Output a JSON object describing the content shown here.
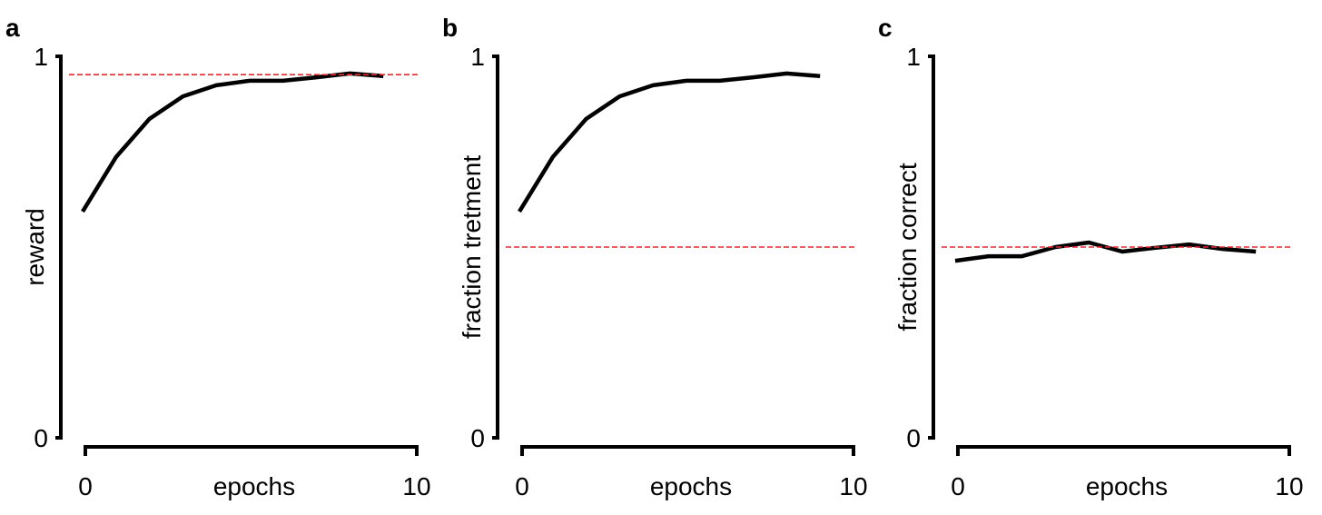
{
  "chart_data": [
    {
      "type": "line",
      "panel_label": "a",
      "xlabel": "epochs",
      "ylabel": "reward",
      "xlim": [
        0,
        10
      ],
      "ylim": [
        0,
        1
      ],
      "xtick_labels": [
        "0",
        "10"
      ],
      "ytick_labels": [
        "0",
        "1"
      ],
      "grid": false,
      "x": [
        0,
        1,
        2,
        3,
        4,
        5,
        6,
        7,
        8,
        9
      ],
      "series": [
        {
          "name": "reward",
          "color": "#000000",
          "values": [
            0.593,
            0.736,
            0.836,
            0.895,
            0.924,
            0.936,
            0.936,
            0.945,
            0.955,
            0.948
          ]
        }
      ],
      "reference_line": {
        "y": 0.952,
        "color": "#e8292b",
        "style": "dashed"
      }
    },
    {
      "type": "line",
      "panel_label": "b",
      "xlabel": "epochs",
      "ylabel": "fraction tretment",
      "xlim": [
        0,
        10
      ],
      "ylim": [
        0,
        1
      ],
      "xtick_labels": [
        "0",
        "10"
      ],
      "ytick_labels": [
        "0",
        "1"
      ],
      "grid": false,
      "x": [
        0,
        1,
        2,
        3,
        4,
        5,
        6,
        7,
        8,
        9
      ],
      "series": [
        {
          "name": "fraction treatment",
          "color": "#000000",
          "values": [
            0.593,
            0.736,
            0.836,
            0.895,
            0.924,
            0.936,
            0.936,
            0.945,
            0.955,
            0.948
          ]
        }
      ],
      "reference_line": {
        "y": 0.5,
        "color": "#e8292b",
        "style": "dashed"
      }
    },
    {
      "type": "line",
      "panel_label": "c",
      "xlabel": "epochs",
      "ylabel": "fraction correct",
      "xlim": [
        0,
        10
      ],
      "ylim": [
        0,
        1
      ],
      "xtick_labels": [
        "0",
        "10"
      ],
      "ytick_labels": [
        "0",
        "1"
      ],
      "grid": false,
      "x": [
        0,
        1,
        2,
        3,
        4,
        5,
        6,
        7,
        8,
        9
      ],
      "series": [
        {
          "name": "fraction correct",
          "color": "#000000",
          "values": [
            0.464,
            0.476,
            0.476,
            0.5,
            0.512,
            0.488,
            0.498,
            0.507,
            0.495,
            0.488
          ]
        }
      ],
      "reference_line": {
        "y": 0.5,
        "color": "#e8292b",
        "style": "dashed"
      }
    }
  ]
}
